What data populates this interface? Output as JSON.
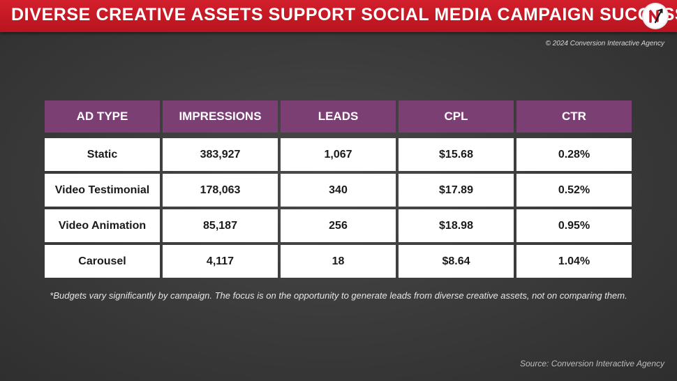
{
  "header": {
    "title": "DIVERSE CREATIVE ASSETS SUPPORT SOCIAL MEDIA CAMPAIGN SUCCESS",
    "logo_icon": "brand-logo-icon",
    "bar_color": "#c8192a"
  },
  "copyright": "© 2024 Conversion Interactive Agency",
  "chart_data": {
    "type": "table",
    "columns": [
      "AD TYPE",
      "IMPRESSIONS",
      "LEADS",
      "CPL",
      "CTR"
    ],
    "rows": [
      [
        "Static",
        "383,927",
        "1,067",
        "$15.68",
        "0.28%"
      ],
      [
        "Video Testimonial",
        "178,063",
        "340",
        "$17.89",
        "0.52%"
      ],
      [
        "Video Animation",
        "85,187",
        "256",
        "$18.98",
        "0.95%"
      ],
      [
        "Carousel",
        "4,117",
        "18",
        "$8.64",
        "1.04%"
      ]
    ],
    "header_color": "#7c3f73"
  },
  "footnote": "*Budgets vary significantly by campaign. The focus is on the opportunity to generate leads from diverse creative assets, not on comparing them.",
  "source": "Source: Conversion Interactive Agency"
}
